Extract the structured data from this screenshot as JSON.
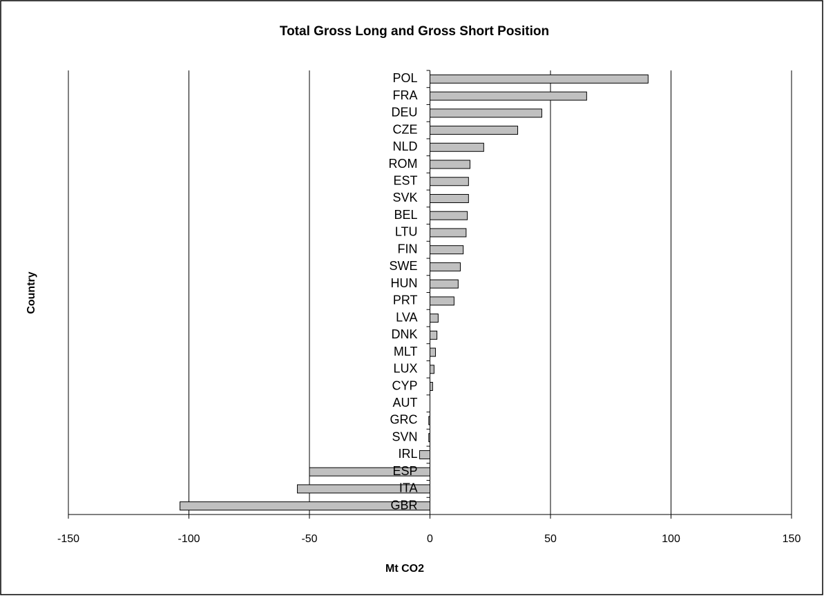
{
  "chart_data": {
    "type": "hbar",
    "title": "Total Gross Long and Gross Short Position",
    "x_label": "Mt CO2",
    "y_label": "Country",
    "categories": [
      "POL",
      "FRA",
      "DEU",
      "CZE",
      "NLD",
      "ROM",
      "EST",
      "SVK",
      "BEL",
      "LTU",
      "FIN",
      "SWE",
      "HUN",
      "PRT",
      "LVA",
      "DNK",
      "MLT",
      "LUX",
      "CYP",
      "AUT",
      "GRC",
      "SVN",
      "IRL",
      "ESP",
      "ITA",
      "GBR"
    ],
    "values": [
      90.5,
      65,
      46.4,
      36.4,
      22.3,
      16.6,
      16,
      16,
      15.5,
      15,
      13.8,
      12.6,
      11.7,
      10,
      3.4,
      2.9,
      2.3,
      1.7,
      1.1,
      0,
      -0.5,
      -0.5,
      -4.3,
      -50,
      -55,
      -103.7
    ],
    "color": "#c0c0c0",
    "xlim": [
      -150,
      150
    ],
    "xticks": [
      -150,
      -100,
      -50,
      0,
      50,
      100,
      150
    ],
    "negative_tick_color": "#ff0000",
    "grid": true
  }
}
